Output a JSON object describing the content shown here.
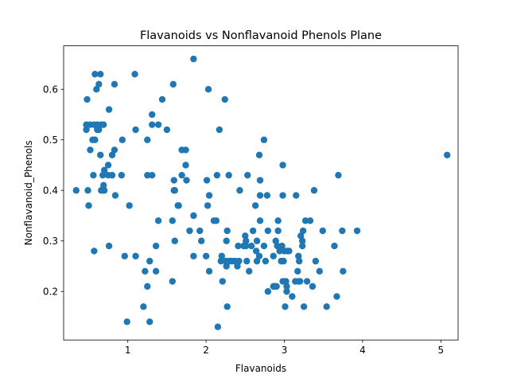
{
  "chart_data": {
    "type": "scatter",
    "title": "Flavanoids vs Nonflavanoid Phenols Plane",
    "xlabel": "Flavanoids",
    "ylabel": "Nonflavanoid_Phenols",
    "xlim": [
      0.18,
      5.22
    ],
    "ylim": [
      0.104,
      0.686
    ],
    "xticks": [
      1,
      2,
      3,
      4,
      5
    ],
    "yticks": [
      0.2,
      0.3,
      0.4,
      0.5,
      0.6
    ],
    "grid": false,
    "legend": "none",
    "marker_color": "#1f77b4",
    "points": [
      [
        0.34,
        0.4
      ],
      [
        0.47,
        0.52
      ],
      [
        0.47,
        0.53
      ],
      [
        0.48,
        0.58
      ],
      [
        0.49,
        0.4
      ],
      [
        0.5,
        0.37
      ],
      [
        0.52,
        0.53
      ],
      [
        0.52,
        0.48
      ],
      [
        0.55,
        0.5
      ],
      [
        0.56,
        0.43
      ],
      [
        0.57,
        0.53
      ],
      [
        0.57,
        0.28
      ],
      [
        0.58,
        0.5
      ],
      [
        0.58,
        0.63
      ],
      [
        0.6,
        0.6
      ],
      [
        0.61,
        0.52
      ],
      [
        0.61,
        0.53
      ],
      [
        0.63,
        0.61
      ],
      [
        0.63,
        0.52
      ],
      [
        0.65,
        0.63
      ],
      [
        0.65,
        0.47
      ],
      [
        0.66,
        0.4
      ],
      [
        0.66,
        0.53
      ],
      [
        0.68,
        0.43
      ],
      [
        0.68,
        0.4
      ],
      [
        0.69,
        0.41
      ],
      [
        0.69,
        0.53
      ],
      [
        0.7,
        0.4
      ],
      [
        0.7,
        0.44
      ],
      [
        0.75,
        0.45
      ],
      [
        0.75,
        0.43
      ],
      [
        0.76,
        0.56
      ],
      [
        0.76,
        0.29
      ],
      [
        0.8,
        0.43
      ],
      [
        0.8,
        0.47
      ],
      [
        0.83,
        0.48
      ],
      [
        0.83,
        0.61
      ],
      [
        0.84,
        0.39
      ],
      [
        0.92,
        0.43
      ],
      [
        0.93,
        0.5
      ],
      [
        0.96,
        0.27
      ],
      [
        0.99,
        0.14
      ],
      [
        1.02,
        0.37
      ],
      [
        1.09,
        0.63
      ],
      [
        1.1,
        0.27
      ],
      [
        1.1,
        0.52
      ],
      [
        1.2,
        0.17
      ],
      [
        1.22,
        0.24
      ],
      [
        1.25,
        0.43
      ],
      [
        1.25,
        0.5
      ],
      [
        1.25,
        0.21
      ],
      [
        1.28,
        0.26
      ],
      [
        1.28,
        0.14
      ],
      [
        1.31,
        0.55
      ],
      [
        1.31,
        0.53
      ],
      [
        1.31,
        0.43
      ],
      [
        1.36,
        0.24
      ],
      [
        1.36,
        0.29
      ],
      [
        1.39,
        0.34
      ],
      [
        1.39,
        0.53
      ],
      [
        1.44,
        0.58
      ],
      [
        1.5,
        0.52
      ],
      [
        1.57,
        0.22
      ],
      [
        1.57,
        0.34
      ],
      [
        1.58,
        0.61
      ],
      [
        1.59,
        0.42
      ],
      [
        1.59,
        0.4
      ],
      [
        1.6,
        0.4
      ],
      [
        1.6,
        0.3
      ],
      [
        1.64,
        0.37
      ],
      [
        1.65,
        0.37
      ],
      [
        1.69,
        0.43
      ],
      [
        1.69,
        0.48
      ],
      [
        1.74,
        0.48
      ],
      [
        1.74,
        0.45
      ],
      [
        1.75,
        0.42
      ],
      [
        1.79,
        0.32
      ],
      [
        1.84,
        0.27
      ],
      [
        1.84,
        0.35
      ],
      [
        1.84,
        0.66
      ],
      [
        1.92,
        0.32
      ],
      [
        1.94,
        0.3
      ],
      [
        2.0,
        0.27
      ],
      [
        2.01,
        0.42
      ],
      [
        2.02,
        0.37
      ],
      [
        2.03,
        0.6
      ],
      [
        2.04,
        0.39
      ],
      [
        2.04,
        0.24
      ],
      [
        2.1,
        0.34
      ],
      [
        2.13,
        0.34
      ],
      [
        2.14,
        0.43
      ],
      [
        2.15,
        0.13
      ],
      [
        2.17,
        0.52
      ],
      [
        2.19,
        0.26
      ],
      [
        2.2,
        0.27
      ],
      [
        2.21,
        0.22
      ],
      [
        2.24,
        0.58
      ],
      [
        2.25,
        0.26
      ],
      [
        2.26,
        0.25
      ],
      [
        2.26,
        0.3
      ],
      [
        2.27,
        0.17
      ],
      [
        2.27,
        0.32
      ],
      [
        2.29,
        0.26
      ],
      [
        2.29,
        0.43
      ],
      [
        2.3,
        0.26
      ],
      [
        2.33,
        0.26
      ],
      [
        2.37,
        0.26
      ],
      [
        2.37,
        0.26
      ],
      [
        2.4,
        0.25
      ],
      [
        2.41,
        0.29
      ],
      [
        2.42,
        0.26
      ],
      [
        2.43,
        0.4
      ],
      [
        2.48,
        0.29
      ],
      [
        2.5,
        0.31
      ],
      [
        2.51,
        0.29
      ],
      [
        2.51,
        0.3
      ],
      [
        2.52,
        0.26
      ],
      [
        2.53,
        0.43
      ],
      [
        2.55,
        0.24
      ],
      [
        2.58,
        0.29
      ],
      [
        2.6,
        0.32
      ],
      [
        2.63,
        0.37
      ],
      [
        2.64,
        0.28
      ],
      [
        2.65,
        0.3
      ],
      [
        2.65,
        0.26
      ],
      [
        2.68,
        0.47
      ],
      [
        2.68,
        0.27
      ],
      [
        2.69,
        0.34
      ],
      [
        2.69,
        0.39
      ],
      [
        2.69,
        0.42
      ],
      [
        2.74,
        0.5
      ],
      [
        2.74,
        0.29
      ],
      [
        2.76,
        0.26
      ],
      [
        2.78,
        0.39
      ],
      [
        2.79,
        0.2
      ],
      [
        2.79,
        0.32
      ],
      [
        2.86,
        0.27
      ],
      [
        2.86,
        0.21
      ],
      [
        2.88,
        0.21
      ],
      [
        2.89,
        0.3
      ],
      [
        2.9,
        0.21
      ],
      [
        2.91,
        0.29
      ],
      [
        2.92,
        0.34
      ],
      [
        2.92,
        0.32
      ],
      [
        2.94,
        0.28
      ],
      [
        2.96,
        0.26
      ],
      [
        2.97,
        0.29
      ],
      [
        2.98,
        0.45
      ],
      [
        2.98,
        0.39
      ],
      [
        2.98,
        0.22
      ],
      [
        2.99,
        0.26
      ],
      [
        3.0,
        0.28
      ],
      [
        3.01,
        0.17
      ],
      [
        3.02,
        0.22
      ],
      [
        3.03,
        0.21
      ],
      [
        3.03,
        0.2
      ],
      [
        3.04,
        0.28
      ],
      [
        3.06,
        0.28
      ],
      [
        3.1,
        0.19
      ],
      [
        3.14,
        0.22
      ],
      [
        3.15,
        0.39
      ],
      [
        3.17,
        0.24
      ],
      [
        3.18,
        0.27
      ],
      [
        3.18,
        0.22
      ],
      [
        3.19,
        0.26
      ],
      [
        3.2,
        0.22
      ],
      [
        3.21,
        0.31
      ],
      [
        3.23,
        0.3
      ],
      [
        3.23,
        0.29
      ],
      [
        3.24,
        0.32
      ],
      [
        3.25,
        0.17
      ],
      [
        3.27,
        0.34
      ],
      [
        3.29,
        0.22
      ],
      [
        3.33,
        0.34
      ],
      [
        3.36,
        0.21
      ],
      [
        3.38,
        0.4
      ],
      [
        3.4,
        0.26
      ],
      [
        3.45,
        0.24
      ],
      [
        3.49,
        0.32
      ],
      [
        3.54,
        0.17
      ],
      [
        3.64,
        0.29
      ],
      [
        3.67,
        0.19
      ],
      [
        3.69,
        0.43
      ],
      [
        3.74,
        0.32
      ],
      [
        3.75,
        0.24
      ],
      [
        3.93,
        0.32
      ],
      [
        5.08,
        0.47
      ]
    ]
  }
}
